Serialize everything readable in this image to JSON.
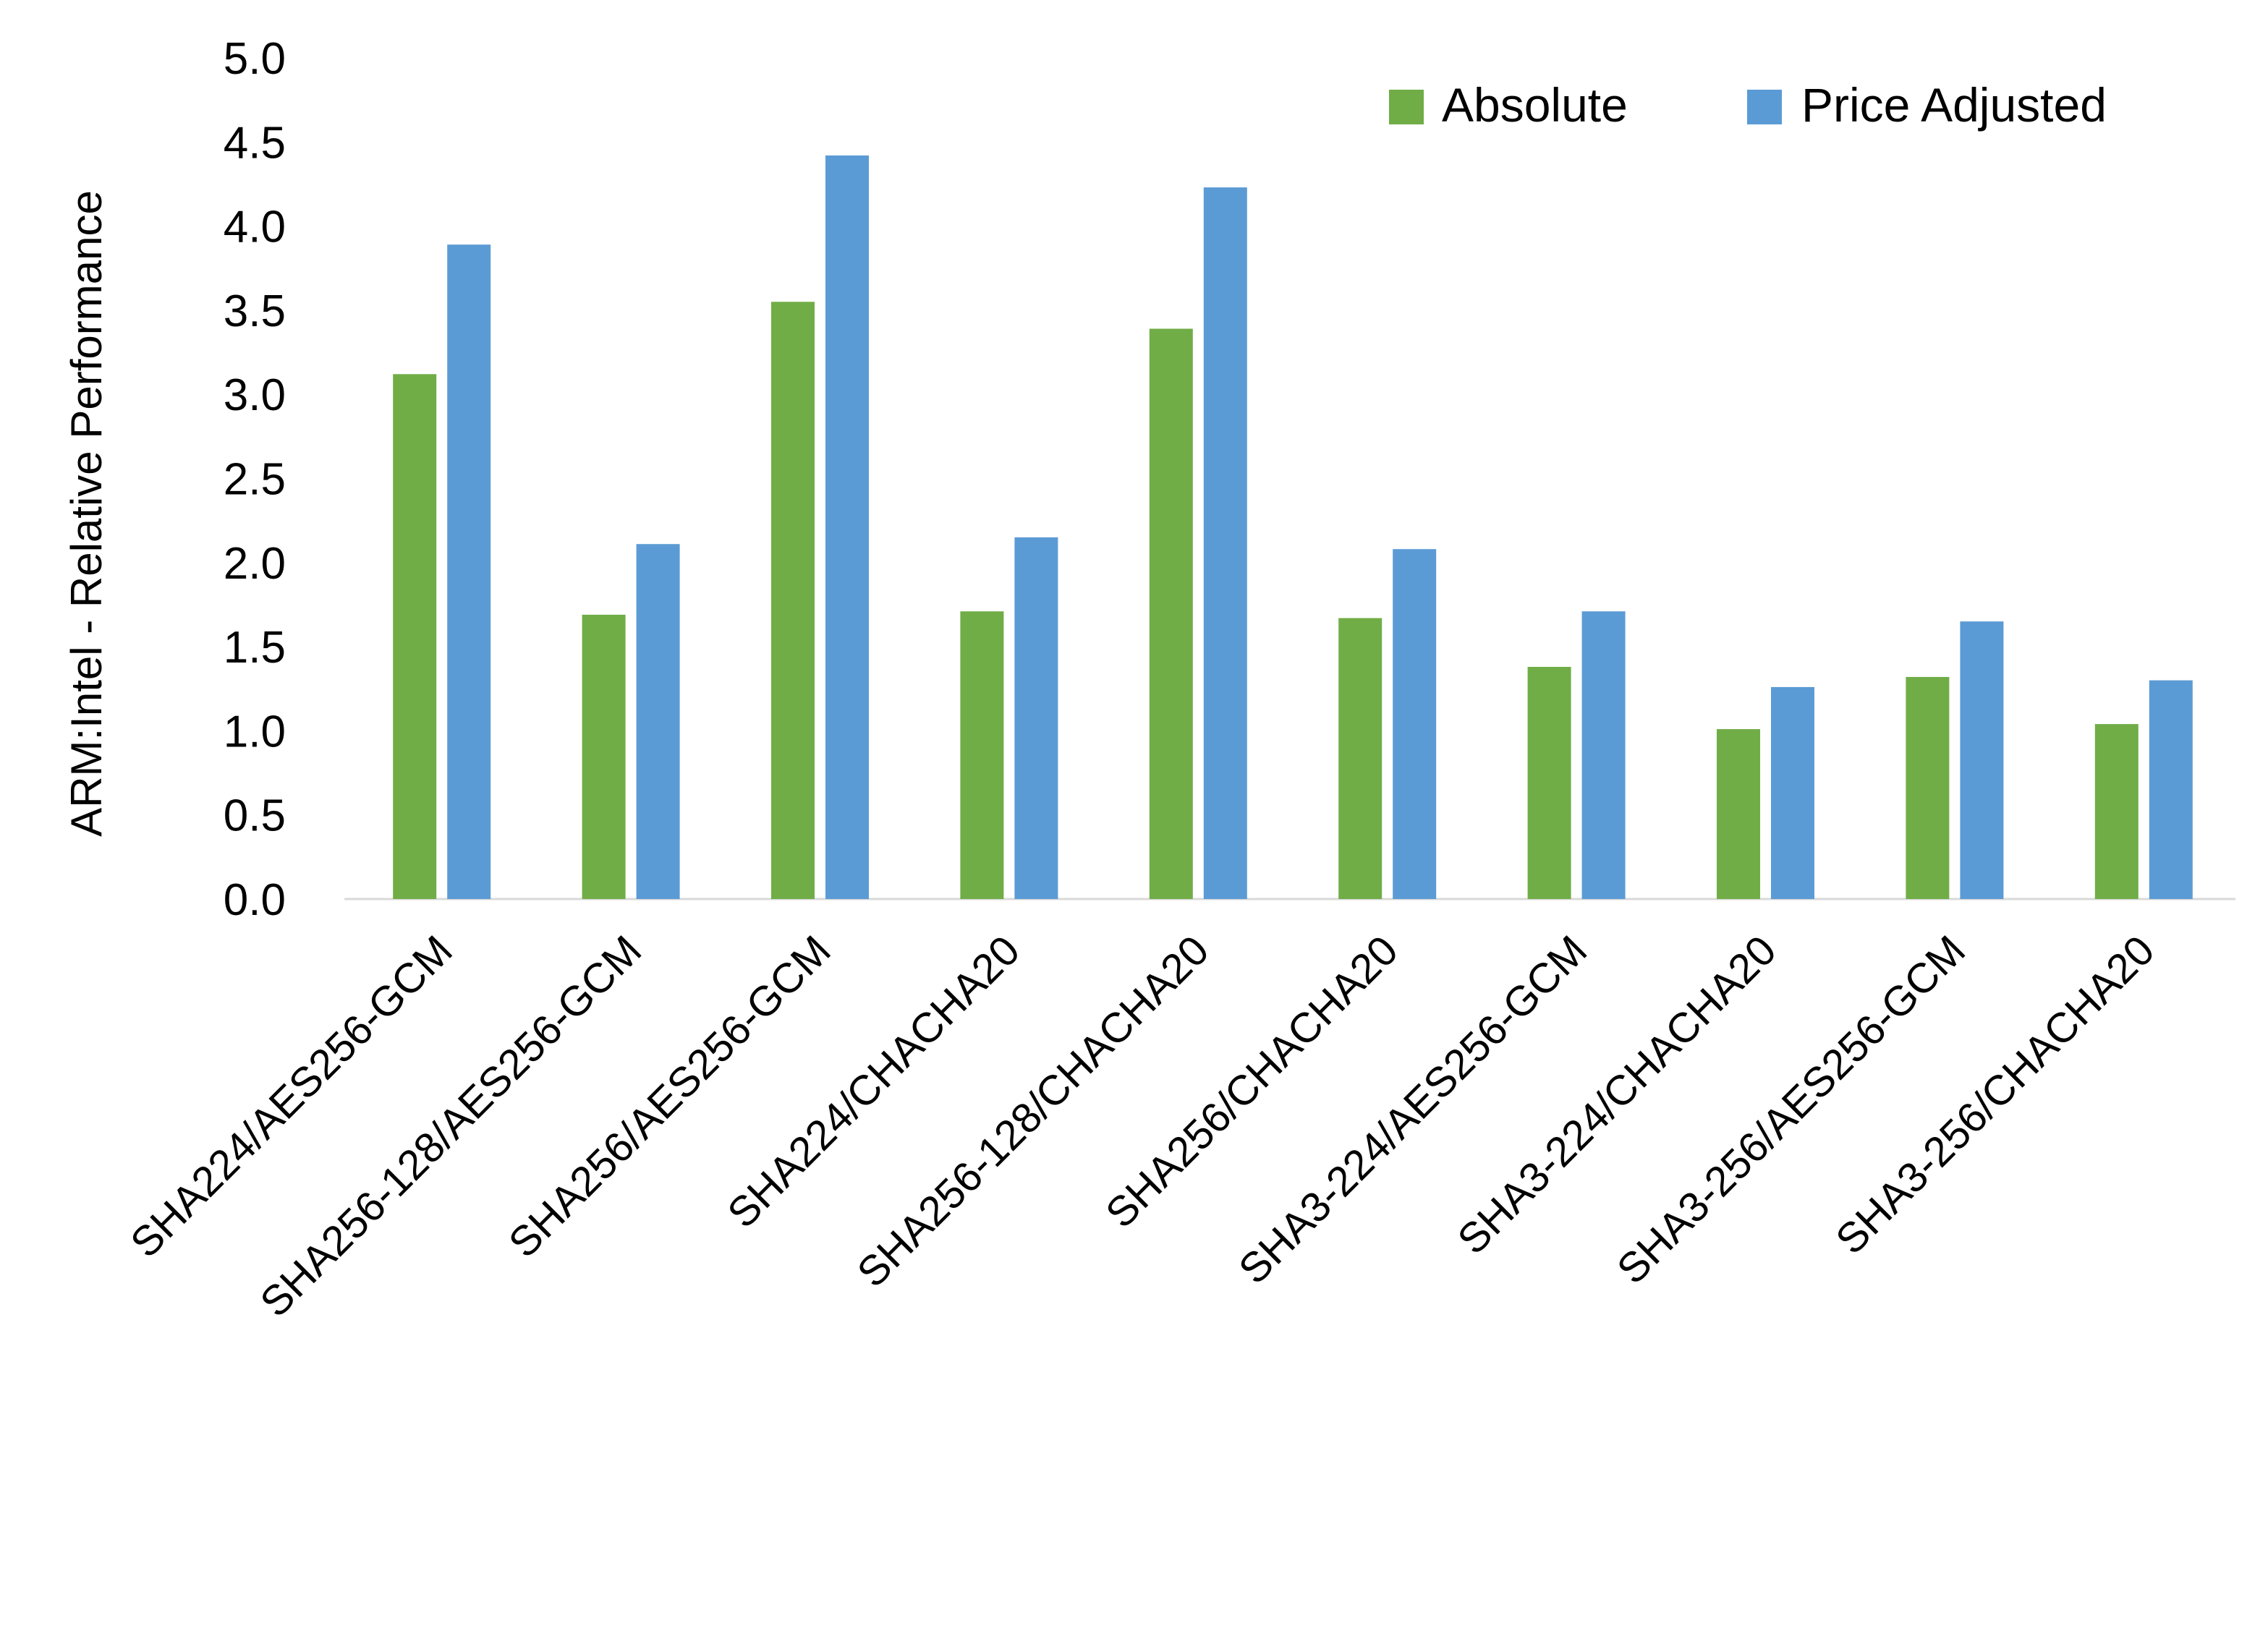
{
  "chart_data": {
    "type": "bar",
    "title": "",
    "xlabel": "",
    "ylabel": "ARM:Intel - Relative Performance",
    "ylim": [
      0,
      5
    ],
    "yticks": [
      "0.0",
      "0.5",
      "1.0",
      "1.5",
      "2.0",
      "2.5",
      "3.0",
      "3.5",
      "4.0",
      "4.5",
      "5.0"
    ],
    "grid": false,
    "legend_position": "top-right",
    "categories": [
      "SHA224/AES256-GCM",
      "SHA256-128/AES256-GCM",
      "SHA256/AES256-GCM",
      "SHA224/CHACHA20",
      "SHA256-128/CHACHA20",
      "SHA256/CHACHA20",
      "SHA3-224/AES256-GCM",
      "SHA3-224/CHACHA20",
      "SHA3-256/AES256-GCM",
      "SHA3-256/CHACHA20"
    ],
    "series": [
      {
        "name": "Absolute",
        "color": "#70AD47",
        "values": [
          3.12,
          1.69,
          3.55,
          1.71,
          3.39,
          1.67,
          1.38,
          1.01,
          1.32,
          1.04
        ]
      },
      {
        "name": "Price Adjusted",
        "color": "#5B9BD5",
        "values": [
          3.89,
          2.11,
          4.42,
          2.15,
          4.23,
          2.08,
          1.71,
          1.26,
          1.65,
          1.3
        ]
      }
    ]
  }
}
